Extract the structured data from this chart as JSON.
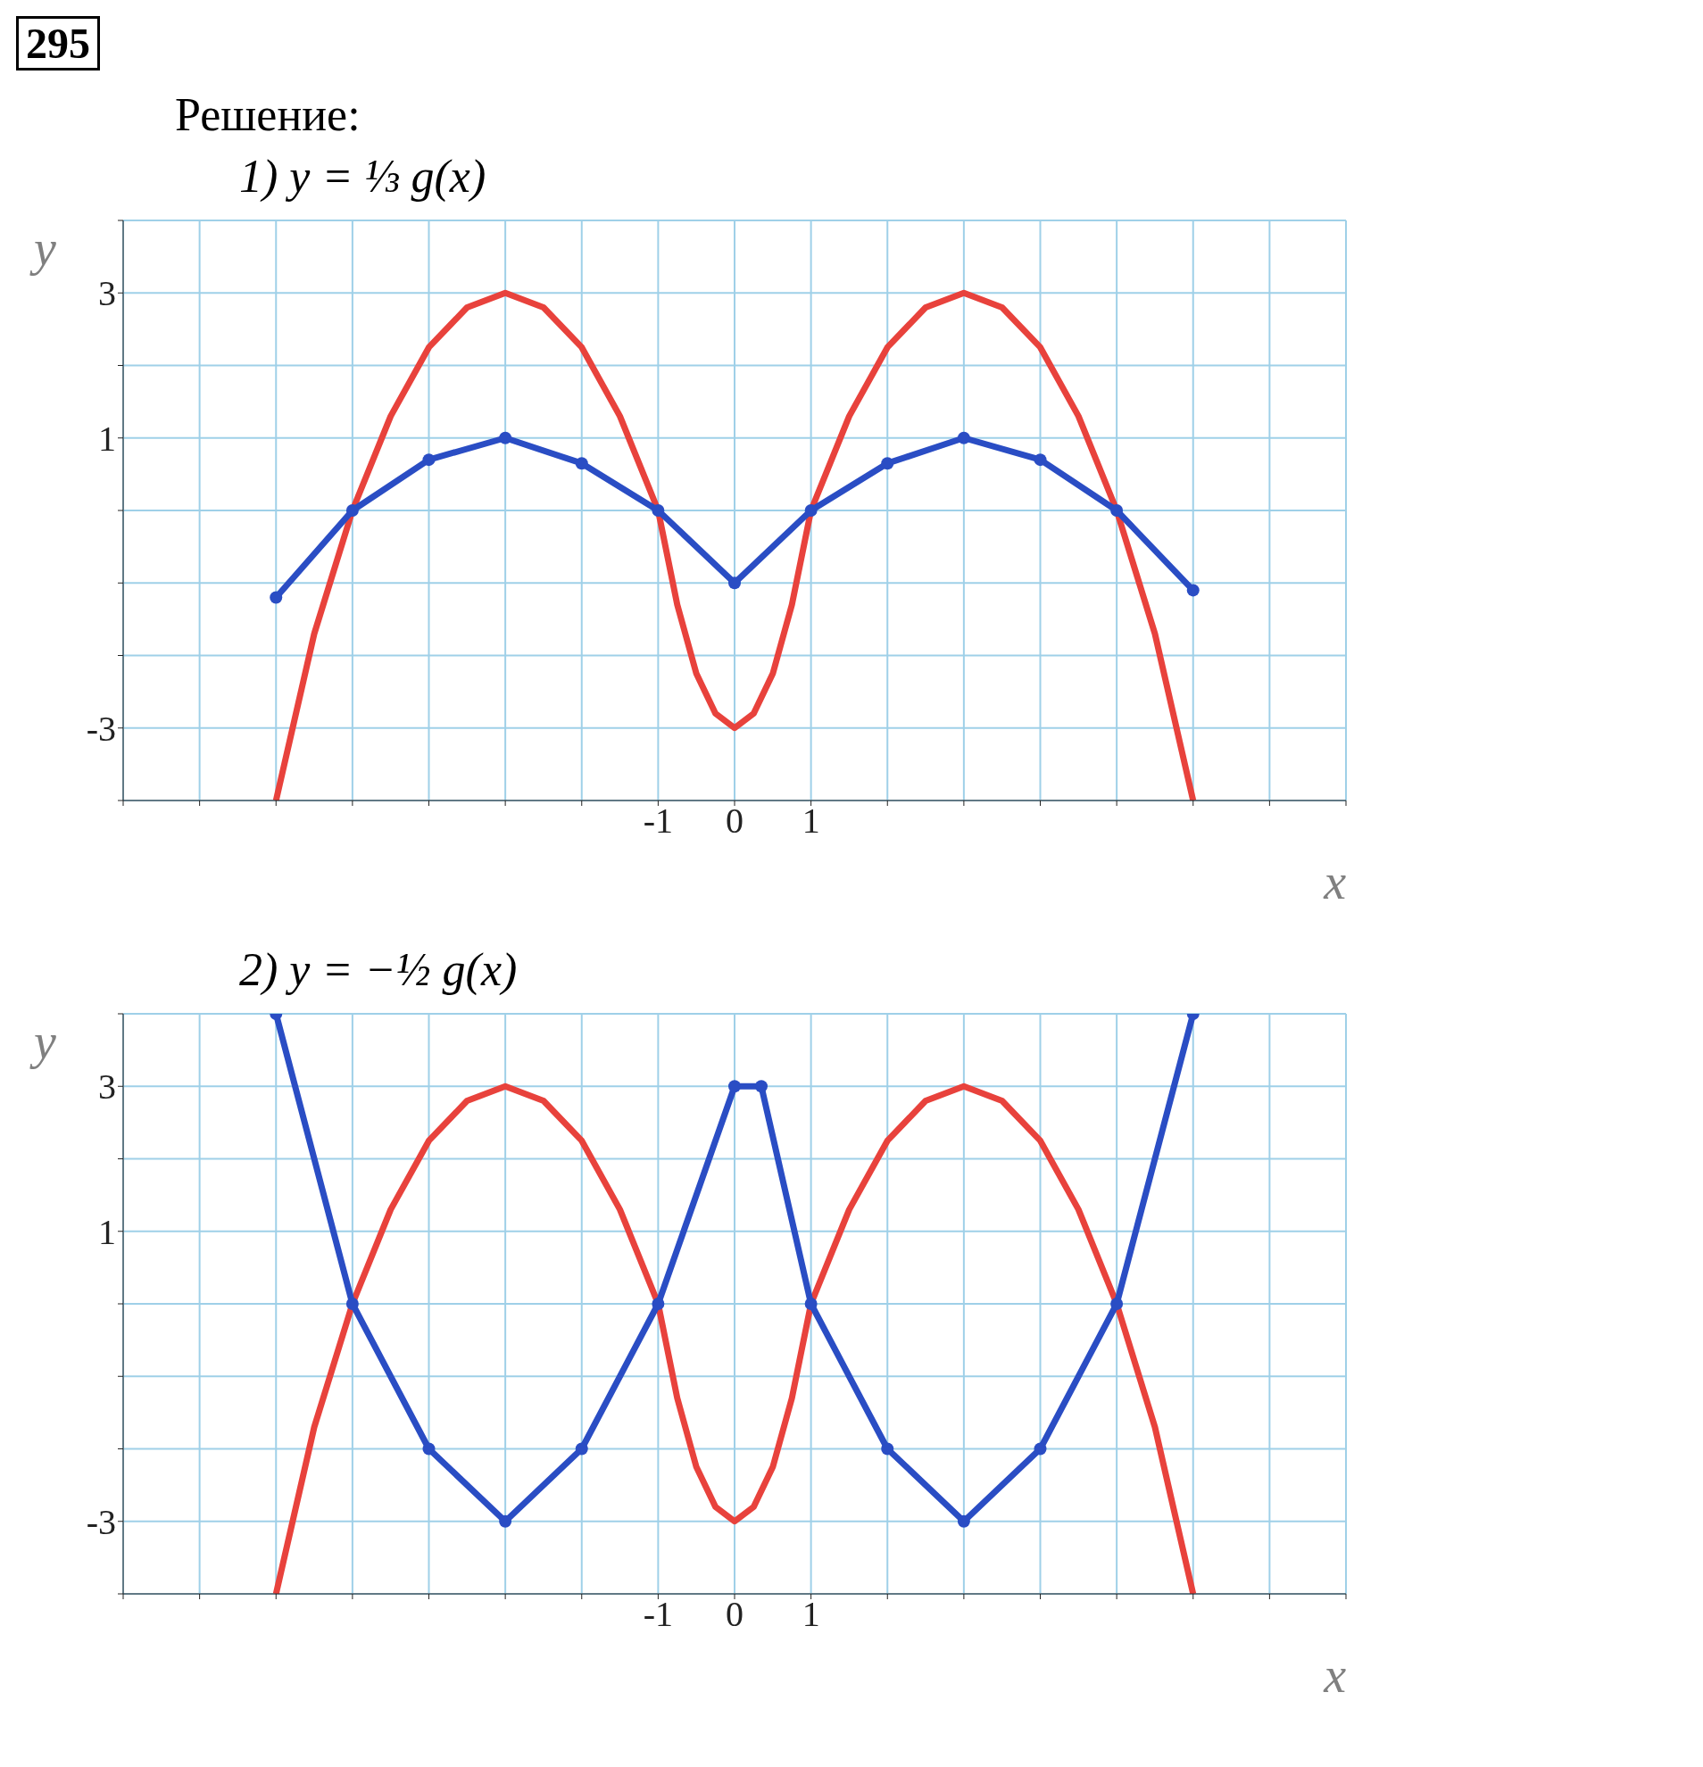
{
  "chart_data": [
    {
      "type": "line",
      "title": "1) y = ⅓ g(x)",
      "annotations": [
        "295",
        "Решение:"
      ],
      "xlabel": "x",
      "ylabel": "y",
      "xlim": [
        -8,
        8
      ],
      "ylim": [
        -4,
        4
      ],
      "xticks": [
        {
          "value": -8,
          "label": null
        },
        {
          "value": -7,
          "label": null
        },
        {
          "value": -6,
          "label": null
        },
        {
          "value": -5,
          "label": null
        },
        {
          "value": -4,
          "label": null
        },
        {
          "value": -3,
          "label": null
        },
        {
          "value": -2,
          "label": null
        },
        -1,
        0,
        1,
        {
          "value": 2,
          "label": null
        },
        {
          "value": 3,
          "label": null
        },
        {
          "value": 4,
          "label": null
        },
        {
          "value": 5,
          "label": null
        },
        {
          "value": 6,
          "label": null
        },
        {
          "value": 7,
          "label": null
        },
        {
          "value": 8,
          "label": null
        }
      ],
      "yticks": [
        {
          "value": -4,
          "label": null
        },
        -3,
        {
          "value": -2,
          "label": null
        },
        {
          "value": -1,
          "label": null
        },
        {
          "value": 0,
          "label": null
        },
        1,
        {
          "value": 2,
          "label": null
        },
        3,
        {
          "value": 4,
          "label": null
        }
      ],
      "grid": true,
      "series": [
        {
          "color": "#e8423c",
          "marker": "none",
          "x": [
            -6,
            -5.5,
            -5,
            -4.5,
            -4,
            -3.5,
            -3,
            -2.5,
            -2,
            -1.5,
            -1,
            -0.75,
            -0.5,
            -0.25,
            0,
            0.25,
            0.5,
            0.75,
            1,
            1.5,
            2,
            2.5,
            3,
            3.5,
            4,
            4.5,
            5,
            5.5,
            6
          ],
          "values": [
            -4,
            -1.7,
            0,
            1.3,
            2.25,
            2.8,
            3,
            2.8,
            2.25,
            1.3,
            0,
            -1.3,
            -2.25,
            -2.8,
            -3,
            -2.8,
            -2.25,
            -1.3,
            0,
            1.3,
            2.25,
            2.8,
            3,
            2.8,
            2.25,
            1.3,
            0,
            -1.7,
            -4
          ]
        },
        {
          "color": "#2a4dc4",
          "marker": "circle",
          "x": [
            -6,
            -5,
            -4,
            -3,
            -2,
            -1,
            0,
            1,
            2,
            3,
            4,
            5,
            6
          ],
          "values": [
            -1.2,
            0,
            0.7,
            1,
            0.65,
            0,
            -1,
            0,
            0.65,
            1,
            0.7,
            0,
            -1.1
          ]
        }
      ]
    },
    {
      "type": "line",
      "title": "2) y = −½ g(x)",
      "xlabel": "x",
      "ylabel": "y",
      "xlim": [
        -8,
        8
      ],
      "ylim": [
        -4,
        4
      ],
      "xticks": [
        {
          "value": -8,
          "label": null
        },
        {
          "value": -7,
          "label": null
        },
        {
          "value": -6,
          "label": null
        },
        {
          "value": -5,
          "label": null
        },
        {
          "value": -4,
          "label": null
        },
        {
          "value": -3,
          "label": null
        },
        {
          "value": -2,
          "label": null
        },
        -1,
        0,
        1,
        {
          "value": 2,
          "label": null
        },
        {
          "value": 3,
          "label": null
        },
        {
          "value": 4,
          "label": null
        },
        {
          "value": 5,
          "label": null
        },
        {
          "value": 6,
          "label": null
        },
        {
          "value": 7,
          "label": null
        },
        {
          "value": 8,
          "label": null
        }
      ],
      "yticks": [
        {
          "value": -4,
          "label": null
        },
        -3,
        {
          "value": -2,
          "label": null
        },
        {
          "value": -1,
          "label": null
        },
        {
          "value": 0,
          "label": null
        },
        1,
        {
          "value": 2,
          "label": null
        },
        3,
        {
          "value": 4,
          "label": null
        }
      ],
      "grid": true,
      "series": [
        {
          "color": "#e8423c",
          "marker": "none",
          "x": [
            -6,
            -5.5,
            -5,
            -4.5,
            -4,
            -3.5,
            -3,
            -2.5,
            -2,
            -1.5,
            -1,
            -0.75,
            -0.5,
            -0.25,
            0,
            0.25,
            0.5,
            0.75,
            1,
            1.5,
            2,
            2.5,
            3,
            3.5,
            4,
            4.5,
            5,
            5.5,
            6
          ],
          "values": [
            -4,
            -1.7,
            0,
            1.3,
            2.25,
            2.8,
            3,
            2.8,
            2.25,
            1.3,
            0,
            -1.3,
            -2.25,
            -2.8,
            -3,
            -2.8,
            -2.25,
            -1.3,
            0,
            1.3,
            2.25,
            2.8,
            3,
            2.8,
            2.25,
            1.3,
            0,
            -1.7,
            -4
          ]
        },
        {
          "color": "#2a4dc4",
          "marker": "circle",
          "x": [
            -6,
            -5,
            -4,
            -3,
            -2,
            -1,
            0,
            0.35,
            1,
            2,
            3,
            4,
            5,
            6
          ],
          "values": [
            4,
            0,
            -2,
            -3,
            -2,
            0,
            3,
            3,
            0,
            -2,
            -3,
            -2,
            0,
            4
          ]
        }
      ]
    }
  ]
}
